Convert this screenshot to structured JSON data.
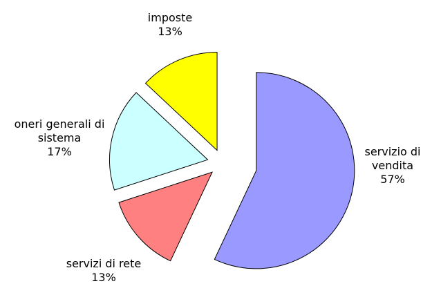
{
  "chart_data": {
    "type": "pie",
    "categories": [
      "servizio di vendita",
      "servizi di rete",
      "oneri generali di sistema",
      "imposte"
    ],
    "values": [
      57,
      13,
      17,
      13
    ],
    "value_labels": [
      "57%",
      "13%",
      "17%",
      "13%"
    ],
    "colors": [
      "#9999ff",
      "#ff8080",
      "#ccffff",
      "#ffff00"
    ]
  }
}
